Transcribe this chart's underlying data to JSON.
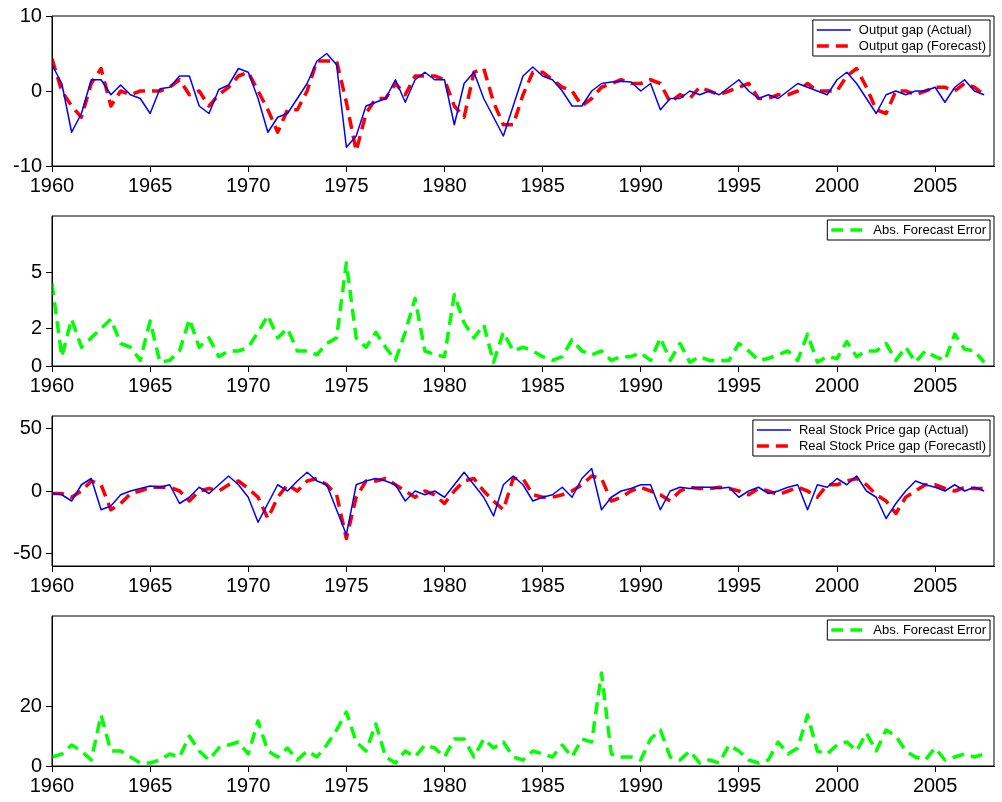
{
  "chart_data": [
    {
      "type": "line",
      "xlim": [
        1960,
        2008
      ],
      "xticks": [
        1960,
        1965,
        1970,
        1975,
        1980,
        1985,
        1990,
        1995,
        2000,
        2005
      ],
      "ylim": [
        -10,
        10
      ],
      "yticks": [
        -10,
        0,
        10
      ],
      "grid": false,
      "legend": "top right",
      "marker": "none",
      "x": [
        1960,
        1960.5,
        1961,
        1961.5,
        1962,
        1962.5,
        1963,
        1963.5,
        1964,
        1964.5,
        1965,
        1965.5,
        1966,
        1966.5,
        1967,
        1967.5,
        1968,
        1968.5,
        1969,
        1969.5,
        1970,
        1970.5,
        1971,
        1971.5,
        1972,
        1972.5,
        1973,
        1973.5,
        1974,
        1974.5,
        1975,
        1975.5,
        1976,
        1976.5,
        1977,
        1977.5,
        1978,
        1978.5,
        1979,
        1979.5,
        1980,
        1980.5,
        1981,
        1981.5,
        1982,
        1982.5,
        1983,
        1983.5,
        1984,
        1984.5,
        1985,
        1985.5,
        1986,
        1986.5,
        1987,
        1987.5,
        1988,
        1988.5,
        1989,
        1989.5,
        1990,
        1990.5,
        1991,
        1991.5,
        1992,
        1992.5,
        1993,
        1993.5,
        1994,
        1994.5,
        1995,
        1995.5,
        1996,
        1996.5,
        1997,
        1997.5,
        1998,
        1998.5,
        1999,
        1999.5,
        2000,
        2000.5,
        2001,
        2001.5,
        2002,
        2002.5,
        2003,
        2003.5,
        2004,
        2004.5,
        2005,
        2005.5,
        2006,
        2006.5,
        2007,
        2007.5
      ],
      "series": [
        {
          "name": "Output gap (Actual)",
          "color": "#0000ff",
          "line_style": "solid",
          "values": [
            3.5,
            1,
            -5.5,
            -3,
            1.5,
            1.5,
            -0.5,
            0.8,
            -0.5,
            -1,
            -3,
            0.3,
            0.5,
            2,
            2,
            -2,
            -3,
            0.2,
            0.8,
            3,
            2.5,
            -1,
            -5.5,
            -3.5,
            -3,
            -1,
            1,
            4,
            5,
            3.5,
            -7.5,
            -6,
            -2,
            -1.5,
            -1,
            1.5,
            -1.5,
            1.5,
            2.5,
            1.5,
            1.5,
            -4.5,
            1,
            2.5,
            -1,
            -3.5,
            -6,
            -2,
            2,
            3.2,
            2,
            1.5,
            0,
            -2,
            -2,
            0,
            1,
            1.2,
            1.3,
            1.2,
            0,
            1,
            -2.5,
            -1,
            -1,
            0,
            -0.5,
            0,
            -0.5,
            0.5,
            1.5,
            0,
            -1,
            -0.5,
            -1,
            0,
            1,
            0.5,
            0,
            -0.5,
            1.5,
            2.5,
            1,
            -1,
            -3,
            -0.5,
            0,
            -0.5,
            0,
            0,
            0.5,
            -1.5,
            0.5,
            1.5,
            0,
            -0.5
          ]
        },
        {
          "name": "Output gap (Forecast)",
          "color": "#ff0000",
          "line_style": "dashed",
          "values": [
            4.3,
            0,
            -2,
            -3.5,
            1,
            3,
            -2,
            0,
            -0.5,
            0,
            0,
            0,
            0.5,
            1.5,
            -0.5,
            0,
            -2,
            -0.5,
            0.5,
            2,
            2.5,
            0,
            -2.5,
            -5.5,
            -2.5,
            -2.5,
            0,
            4,
            4,
            4,
            -1.5,
            -8,
            -3,
            -1,
            -1,
            1,
            -0.5,
            2,
            2,
            2,
            1.5,
            -2,
            -3.5,
            2.5,
            3,
            -1.5,
            -4.5,
            -4.5,
            -0.5,
            2.5,
            2.5,
            1.5,
            0.5,
            0,
            -2,
            -1,
            0.5,
            1,
            1.5,
            1,
            1,
            1.5,
            1,
            -1.5,
            -0.5,
            -1,
            0.5,
            0,
            -0.5,
            0,
            0.5,
            1,
            -1,
            -1,
            -0.5,
            -0.5,
            0,
            1,
            0,
            0,
            0,
            2,
            3,
            0.5,
            -2.5,
            -3,
            0,
            0,
            -0.5,
            0,
            0.5,
            0.5,
            0,
            1,
            0.5,
            -0.5
          ]
        }
      ]
    },
    {
      "type": "line",
      "xlim": [
        1960,
        2008
      ],
      "xticks": [
        1960,
        1965,
        1970,
        1975,
        1980,
        1985,
        1990,
        1995,
        2000,
        2005
      ],
      "ylim": [
        0,
        8
      ],
      "yticks": [
        0,
        2,
        5
      ],
      "grid": false,
      "legend": "top right",
      "marker": "none",
      "x": [
        1960,
        1960.5,
        1961,
        1961.5,
        1962,
        1962.5,
        1963,
        1963.5,
        1964,
        1964.5,
        1965,
        1965.5,
        1966,
        1966.5,
        1967,
        1967.5,
        1968,
        1968.5,
        1969,
        1969.5,
        1970,
        1970.5,
        1971,
        1971.5,
        1972,
        1972.5,
        1973,
        1973.5,
        1974,
        1974.5,
        1975,
        1975.5,
        1976,
        1976.5,
        1977,
        1977.5,
        1978,
        1978.5,
        1979,
        1979.5,
        1980,
        1980.5,
        1981,
        1981.5,
        1982,
        1982.5,
        1983,
        1983.5,
        1984,
        1984.5,
        1985,
        1985.5,
        1986,
        1986.5,
        1987,
        1987.5,
        1988,
        1988.5,
        1989,
        1989.5,
        1990,
        1990.5,
        1991,
        1991.5,
        1992,
        1992.5,
        1993,
        1993.5,
        1994,
        1994.5,
        1995,
        1995.5,
        1996,
        1996.5,
        1997,
        1997.5,
        1998,
        1998.5,
        1999,
        1999.5,
        2000,
        2000.5,
        2001,
        2001.5,
        2002,
        2002.5,
        2003,
        2003.5,
        2004,
        2004.5,
        2005,
        2005.5,
        2006,
        2006.5,
        2007,
        2007.5
      ],
      "series": [
        {
          "name": "Abs. Forecast Error",
          "color": "#00ff00",
          "line_style": "dashed",
          "values": [
            4.4,
            0.5,
            2.5,
            1,
            1.5,
            2,
            2.5,
            1.2,
            1,
            0.3,
            2.4,
            0.2,
            0.3,
            0.8,
            2.5,
            1,
            1.5,
            0.5,
            0.8,
            0.8,
            1,
            1.8,
            2.7,
            1.5,
            2,
            0.8,
            0.8,
            0.6,
            1.2,
            1.5,
            5.5,
            1.5,
            1,
            1.8,
            1,
            0.3,
            1.8,
            3.6,
            0.8,
            0.6,
            0.5,
            3.8,
            2.3,
            1.5,
            2.2,
            0.2,
            1.8,
            0.8,
            1,
            0.8,
            0.5,
            0.3,
            0.5,
            1.4,
            0.8,
            0.6,
            0.8,
            0.3,
            0.5,
            0.5,
            0.7,
            0.3,
            1.5,
            0.3,
            1.2,
            0.2,
            0.5,
            0.3,
            0.3,
            0.3,
            1.2,
            0.8,
            0.3,
            0.4,
            0.6,
            0.8,
            0.3,
            1.7,
            0.2,
            0.5,
            0.4,
            1.3,
            0.5,
            0.8,
            0.8,
            1.2,
            0.3,
            1,
            0.2,
            0.8,
            0.5,
            0.3,
            1.7,
            0.9,
            0.8,
            0.2
          ]
        }
      ]
    },
    {
      "type": "line",
      "xlim": [
        1960,
        2008
      ],
      "xticks": [
        1960,
        1965,
        1970,
        1975,
        1980,
        1985,
        1990,
        1995,
        2000,
        2005
      ],
      "ylim": [
        -60,
        60
      ],
      "yticks": [
        -50,
        0,
        50
      ],
      "grid": false,
      "legend": "top right",
      "marker": "none",
      "x": [
        1960,
        1960.5,
        1961,
        1961.5,
        1962,
        1962.5,
        1963,
        1963.5,
        1964,
        1964.5,
        1965,
        1965.5,
        1966,
        1966.5,
        1967,
        1967.5,
        1968,
        1968.5,
        1969,
        1969.5,
        1970,
        1970.5,
        1971,
        1971.5,
        1972,
        1972.5,
        1973,
        1973.5,
        1974,
        1974.5,
        1975,
        1975.5,
        1976,
        1976.5,
        1977,
        1977.5,
        1978,
        1978.5,
        1979,
        1979.5,
        1980,
        1980.5,
        1981,
        1981.5,
        1982,
        1982.5,
        1983,
        1983.5,
        1984,
        1984.5,
        1985,
        1985.5,
        1986,
        1986.5,
        1987,
        1987.5,
        1988,
        1988.5,
        1989,
        1989.5,
        1990,
        1990.5,
        1991,
        1991.5,
        1992,
        1992.5,
        1993,
        1993.5,
        1994,
        1994.5,
        1995,
        1995.5,
        1996,
        1996.5,
        1997,
        1997.5,
        1998,
        1998.5,
        1999,
        1999.5,
        2000,
        2000.5,
        2001,
        2001.5,
        2002,
        2002.5,
        2003,
        2003.5,
        2004,
        2004.5,
        2005,
        2005.5,
        2006,
        2006.5,
        2007,
        2007.5
      ],
      "series": [
        {
          "name": "Real Stock Price gap (Actual)",
          "color": "#0000ff",
          "line_style": "solid",
          "values": [
            -2,
            -3,
            -8,
            5,
            10,
            -15,
            -12,
            -3,
            0,
            2,
            4,
            3,
            5,
            -10,
            -5,
            3,
            -2,
            5,
            12,
            5,
            -5,
            -25,
            -10,
            5,
            0,
            8,
            15,
            8,
            5,
            -15,
            -35,
            5,
            8,
            10,
            8,
            5,
            -8,
            0,
            -3,
            0,
            -5,
            5,
            15,
            5,
            -5,
            -20,
            5,
            12,
            5,
            -8,
            -5,
            -3,
            3,
            -5,
            10,
            18,
            -15,
            -5,
            0,
            2,
            5,
            5,
            -15,
            0,
            3,
            2,
            3,
            3,
            2,
            3,
            -5,
            0,
            3,
            -2,
            0,
            3,
            5,
            -15,
            5,
            3,
            10,
            5,
            12,
            0,
            -5,
            -22,
            -10,
            0,
            8,
            5,
            3,
            0,
            5,
            0,
            3,
            0
          ]
        },
        {
          "name": "Real Stock Price gap (Forecastl)",
          "color": "#ff0000",
          "line_style": "dashed",
          "values": [
            -2,
            -2,
            -5,
            0,
            8,
            5,
            -15,
            -10,
            -2,
            0,
            3,
            3,
            3,
            0,
            -8,
            0,
            2,
            0,
            5,
            8,
            2,
            -5,
            -22,
            -5,
            5,
            0,
            8,
            10,
            5,
            -3,
            -38,
            -5,
            8,
            8,
            10,
            5,
            0,
            -5,
            0,
            -3,
            -10,
            0,
            8,
            10,
            0,
            -8,
            -15,
            10,
            10,
            -3,
            -5,
            -5,
            -3,
            0,
            5,
            12,
            10,
            -8,
            -5,
            0,
            3,
            0,
            -3,
            -8,
            0,
            3,
            2,
            2,
            3,
            2,
            0,
            -3,
            2,
            0,
            -3,
            0,
            3,
            0,
            -5,
            5,
            5,
            8,
            10,
            5,
            -3,
            -8,
            -18,
            -5,
            0,
            5,
            5,
            2,
            0,
            3,
            2,
            2
          ]
        }
      ]
    },
    {
      "type": "line",
      "xlim": [
        1960,
        2008
      ],
      "xticks": [
        1960,
        1965,
        1970,
        1975,
        1980,
        1985,
        1990,
        1995,
        2000,
        2005
      ],
      "ylim": [
        0,
        50
      ],
      "yticks": [
        0,
        20
      ],
      "grid": false,
      "legend": "top right",
      "marker": "none",
      "x": [
        1960,
        1960.5,
        1961,
        1961.5,
        1962,
        1962.5,
        1963,
        1963.5,
        1964,
        1964.5,
        1965,
        1965.5,
        1966,
        1966.5,
        1967,
        1967.5,
        1968,
        1968.5,
        1969,
        1969.5,
        1970,
        1970.5,
        1971,
        1971.5,
        1972,
        1972.5,
        1973,
        1973.5,
        1974,
        1974.5,
        1975,
        1975.5,
        1976,
        1976.5,
        1977,
        1977.5,
        1978,
        1978.5,
        1979,
        1979.5,
        1980,
        1980.5,
        1981,
        1981.5,
        1982,
        1982.5,
        1983,
        1983.5,
        1984,
        1984.5,
        1985,
        1985.5,
        1986,
        1986.5,
        1987,
        1987.5,
        1988,
        1988.5,
        1989,
        1989.5,
        1990,
        1990.5,
        1991,
        1991.5,
        1992,
        1992.5,
        1993,
        1993.5,
        1994,
        1994.5,
        1995,
        1995.5,
        1996,
        1996.5,
        1997,
        1997.5,
        1998,
        1998.5,
        1999,
        1999.5,
        2000,
        2000.5,
        2001,
        2001.5,
        2002,
        2002.5,
        2003,
        2003.5,
        2004,
        2004.5,
        2005,
        2005.5,
        2006,
        2006.5,
        2007,
        2007.5
      ],
      "series": [
        {
          "name": "Abs. Forecast Error",
          "color": "#00ff00",
          "line_style": "dashed",
          "values": [
            3,
            4,
            7,
            5,
            2,
            17,
            5,
            5,
            3,
            1,
            1,
            2,
            4,
            3,
            10,
            5,
            2,
            6,
            7,
            8,
            4,
            15,
            5,
            3,
            6,
            2,
            5,
            3,
            7,
            12,
            18,
            8,
            5,
            14,
            3,
            1,
            5,
            3,
            7,
            6,
            3,
            9,
            9,
            3,
            9,
            6,
            8,
            3,
            2,
            5,
            4,
            3,
            7,
            3,
            9,
            8,
            31,
            4,
            3,
            3,
            2,
            9,
            12,
            3,
            2,
            5,
            1,
            2,
            1,
            7,
            5,
            2,
            1,
            2,
            8,
            4,
            6,
            17,
            5,
            4,
            7,
            8,
            5,
            11,
            5,
            12,
            10,
            5,
            3,
            2,
            6,
            2,
            3,
            4,
            3,
            4
          ]
        }
      ]
    }
  ]
}
